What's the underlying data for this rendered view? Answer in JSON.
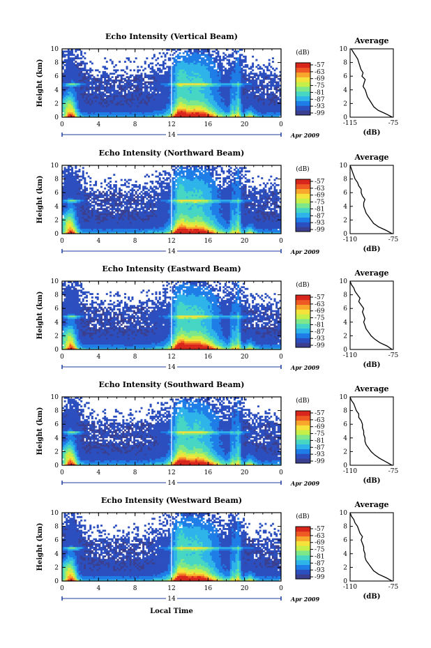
{
  "figure": {
    "xlabel": "Local Time",
    "date_label": "Apr 2009",
    "day_label": "14",
    "ylabel": "Height (km)",
    "colorbar_unit": "(dB)",
    "avg_title": "Average",
    "avg_xlabel": "(dB)",
    "colors": {
      "colormap": [
        "#3b3f8f",
        "#2c4fbf",
        "#1e7de6",
        "#2fb4ea",
        "#47d6c4",
        "#7ee78a",
        "#c7ef4a",
        "#f5e23a",
        "#f9a62c",
        "#ef5a24",
        "#d9261c"
      ],
      "background": "#ffffff"
    }
  },
  "chart_data": [
    {
      "type": "heatmap",
      "title": "Echo Intensity (Vertical Beam)",
      "xlabel": "Local Time",
      "ylabel": "Height (km)",
      "xlim": [
        0,
        24
      ],
      "ylim": [
        0,
        10
      ],
      "xticks": [
        "0",
        "4",
        "8",
        "12",
        "16",
        "20",
        "0"
      ],
      "yticks": [
        "0",
        "2",
        "4",
        "6",
        "8",
        "10"
      ],
      "colorbar": {
        "label": "(dB)",
        "ticks": [
          "-57",
          "-63",
          "-69",
          "-75",
          "-81",
          "-87",
          "-93",
          "-99"
        ]
      },
      "average_profile": {
        "title": "Average",
        "xlabel": "(dB)",
        "xlim": [
          -115,
          -75
        ],
        "xticks": [
          "-115",
          "-75"
        ],
        "heights_km": [
          0,
          0.5,
          1,
          1.5,
          2,
          2.5,
          3,
          3.5,
          4,
          4.5,
          5,
          5.5,
          6,
          6.5,
          7,
          7.5,
          8,
          8.5,
          9,
          9.5,
          10
        ],
        "values_db": [
          -76,
          -82,
          -89,
          -93,
          -95,
          -97,
          -99,
          -100,
          -101,
          -103,
          -102,
          -101,
          -104,
          -103,
          -105,
          -106,
          -107,
          -108,
          -110,
          -112,
          -114
        ]
      }
    },
    {
      "type": "heatmap",
      "title": "Echo Intensity (Northward Beam)",
      "xlabel": "Local Time",
      "ylabel": "Height (km)",
      "xlim": [
        0,
        24
      ],
      "ylim": [
        0,
        10
      ],
      "xticks": [
        "0",
        "4",
        "8",
        "12",
        "16",
        "20",
        "0"
      ],
      "yticks": [
        "0",
        "2",
        "4",
        "6",
        "8",
        "10"
      ],
      "colorbar": {
        "label": "(dB)",
        "ticks": [
          "-57",
          "-63",
          "-69",
          "-75",
          "-81",
          "-87",
          "-93",
          "-99"
        ]
      },
      "average_profile": {
        "title": "Average",
        "xlabel": "(dB)",
        "xlim": [
          -110,
          -75
        ],
        "xticks": [
          "-110",
          "-75"
        ],
        "heights_km": [
          0,
          0.5,
          1,
          1.5,
          2,
          2.5,
          3,
          3.5,
          4,
          4.5,
          5,
          5.5,
          6,
          6.5,
          7,
          7.5,
          8,
          8.5,
          9,
          9.5,
          10
        ],
        "values_db": [
          -76,
          -81,
          -87,
          -91,
          -93,
          -95,
          -97,
          -98,
          -99,
          -99,
          -98,
          -100,
          -101,
          -101,
          -103,
          -104,
          -106,
          -107,
          -108,
          -109,
          -110
        ]
      }
    },
    {
      "type": "heatmap",
      "title": "Echo Intensity (Eastward Beam)",
      "xlabel": "Local Time",
      "ylabel": "Height (km)",
      "xlim": [
        0,
        24
      ],
      "ylim": [
        0,
        10
      ],
      "xticks": [
        "0",
        "4",
        "8",
        "12",
        "16",
        "20",
        "0"
      ],
      "yticks": [
        "0",
        "2",
        "4",
        "6",
        "8",
        "10"
      ],
      "colorbar": {
        "label": "(dB)",
        "ticks": [
          "-57",
          "-63",
          "-69",
          "-75",
          "-81",
          "-87",
          "-93",
          "-99"
        ]
      },
      "average_profile": {
        "title": "Average",
        "xlabel": "(dB)",
        "xlim": [
          -110,
          -75
        ],
        "xticks": [
          "-110",
          "-75"
        ],
        "heights_km": [
          0,
          0.5,
          1,
          1.5,
          2,
          2.5,
          3,
          3.5,
          4,
          4.5,
          5,
          5.5,
          6,
          6.5,
          7,
          7.5,
          8,
          8.5,
          9,
          9.5,
          10
        ],
        "values_db": [
          -76,
          -80,
          -86,
          -90,
          -93,
          -95,
          -97,
          -98,
          -99,
          -98,
          -99,
          -100,
          -99,
          -101,
          -103,
          -102,
          -104,
          -106,
          -107,
          -109,
          -110
        ]
      }
    },
    {
      "type": "heatmap",
      "title": "Echo Intensity (Southward Beam)",
      "xlabel": "Local Time",
      "ylabel": "Height (km)",
      "xlim": [
        0,
        24
      ],
      "ylim": [
        0,
        10
      ],
      "xticks": [
        "0",
        "4",
        "8",
        "12",
        "16",
        "20",
        "0"
      ],
      "yticks": [
        "0",
        "2",
        "4",
        "6",
        "8",
        "10"
      ],
      "colorbar": {
        "label": "(dB)",
        "ticks": [
          "-57",
          "-63",
          "-69",
          "-75",
          "-81",
          "-87",
          "-93",
          "-99"
        ]
      },
      "average_profile": {
        "title": "Average",
        "xlabel": "(dB)",
        "xlim": [
          -110,
          -75
        ],
        "xticks": [
          "-110",
          "-75"
        ],
        "heights_km": [
          0,
          0.5,
          1,
          1.5,
          2,
          2.5,
          3,
          3.5,
          4,
          4.5,
          5,
          5.5,
          6,
          6.5,
          7,
          7.5,
          8,
          8.5,
          9,
          9.5,
          10
        ],
        "values_db": [
          -76,
          -81,
          -86,
          -90,
          -93,
          -95,
          -97,
          -98,
          -98,
          -99,
          -99,
          -100,
          -100,
          -101,
          -103,
          -103,
          -105,
          -106,
          -107,
          -109,
          -110
        ]
      }
    },
    {
      "type": "heatmap",
      "title": "Echo Intensity (Westward Beam)",
      "xlabel": "Local Time",
      "ylabel": "Height (km)",
      "xlim": [
        0,
        24
      ],
      "ylim": [
        0,
        10
      ],
      "xticks": [
        "0",
        "4",
        "8",
        "12",
        "16",
        "20",
        "0"
      ],
      "yticks": [
        "0",
        "2",
        "4",
        "6",
        "8",
        "10"
      ],
      "colorbar": {
        "label": "(dB)",
        "ticks": [
          "-57",
          "-63",
          "-69",
          "-75",
          "-81",
          "-87",
          "-93",
          "-99"
        ]
      },
      "average_profile": {
        "title": "Average",
        "xlabel": "(dB)",
        "xlim": [
          -110,
          -75
        ],
        "xticks": [
          "-110",
          "-75"
        ],
        "heights_km": [
          0,
          0.5,
          1,
          1.5,
          2,
          2.5,
          3,
          3.5,
          4,
          4.5,
          5,
          5.5,
          6,
          6.5,
          7,
          7.5,
          8,
          8.5,
          9,
          9.5,
          10
        ],
        "values_db": [
          -76,
          -81,
          -87,
          -91,
          -93,
          -95,
          -97,
          -98,
          -98,
          -99,
          -99,
          -100,
          -101,
          -100,
          -102,
          -103,
          -104,
          -106,
          -107,
          -109,
          -110
        ]
      }
    }
  ]
}
